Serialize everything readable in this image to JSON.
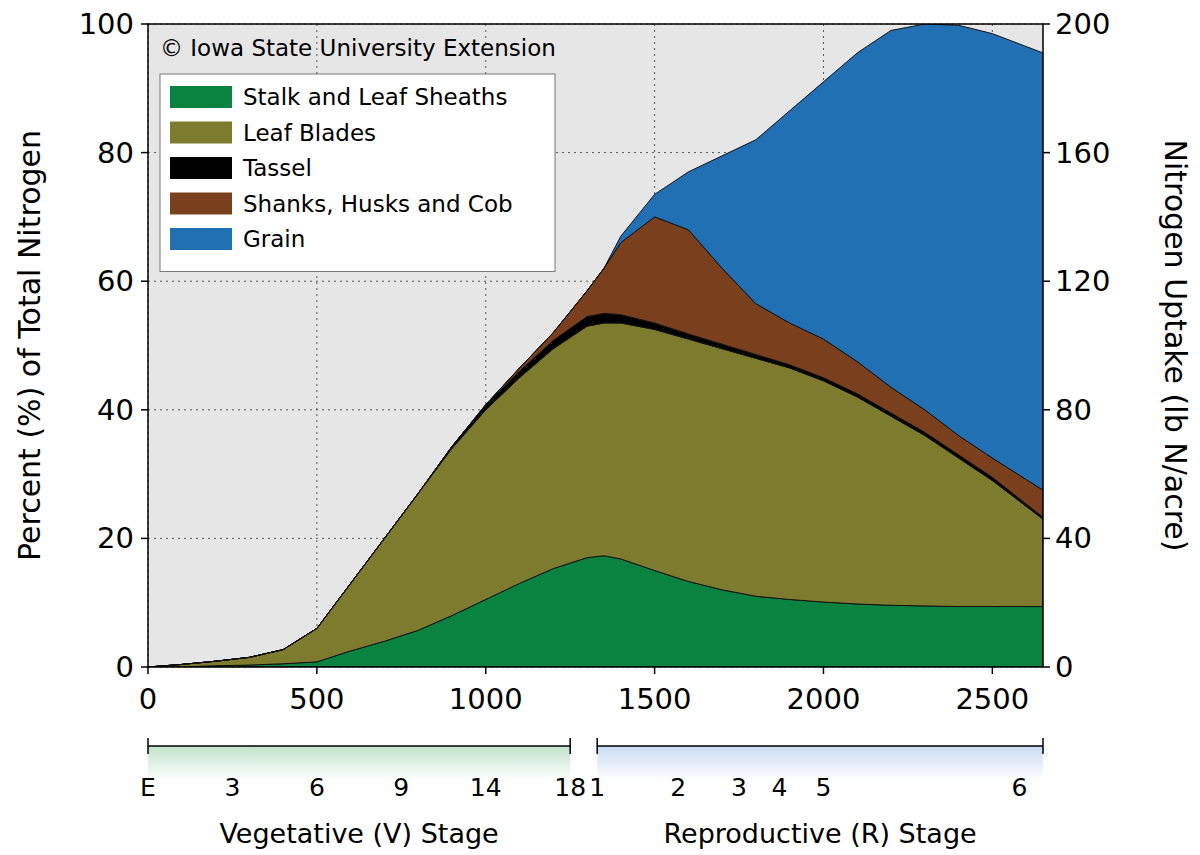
{
  "chart_data": {
    "type": "area",
    "stacked": true,
    "annotations": [
      "© Iowa State University Extension"
    ],
    "ylabel": "Percent (%) of Total Nitrogen",
    "y2label": "Nitrogen Uptake (lb N/acre)",
    "x": [
      0,
      100,
      200,
      300,
      400,
      500,
      600,
      700,
      800,
      900,
      1000,
      1100,
      1200,
      1300,
      1350,
      1400,
      1500,
      1600,
      1700,
      1800,
      1900,
      2000,
      2100,
      2200,
      2300,
      2400,
      2500,
      2650
    ],
    "xlim": [
      0,
      2650
    ],
    "xticks": [
      0,
      500,
      1000,
      1500,
      2000,
      2500
    ],
    "ylim": [
      0,
      100
    ],
    "yticks": [
      0,
      20,
      40,
      60,
      80,
      100
    ],
    "y2lim": [
      0,
      200
    ],
    "y2ticks": [
      0,
      40,
      80,
      120,
      160,
      200
    ],
    "grid": true,
    "legend": "top-left",
    "series": [
      {
        "name": "Stalk and Leaf Sheaths",
        "color": "#0a8341",
        "values": [
          0,
          0,
          0.2,
          0.3,
          0.5,
          0.8,
          2.5,
          4,
          5.7,
          8,
          10.5,
          13,
          15.3,
          17,
          17.3,
          16.8,
          15,
          13.3,
          12,
          11,
          10.5,
          10.1,
          9.8,
          9.6,
          9.5,
          9.4,
          9.4,
          9.4
        ]
      },
      {
        "name": "Leaf Blades",
        "color": "#7d7c2e",
        "values": [
          0,
          0.4,
          0.7,
          1.2,
          2.2,
          5.2,
          10.5,
          16,
          21.3,
          26,
          29.5,
          32,
          34.2,
          36,
          36.2,
          36.7,
          37.5,
          37.7,
          37.5,
          37,
          36,
          34.4,
          32.2,
          29.4,
          26.5,
          23.1,
          19.6,
          13.6
        ]
      },
      {
        "name": "Tassel",
        "color": "#000000",
        "values": [
          0,
          0,
          0,
          0,
          0,
          0,
          0,
          0,
          0,
          0.3,
          0.7,
          1,
          1.3,
          1.5,
          1.5,
          1.3,
          1,
          0.8,
          0.7,
          0.6,
          0.5,
          0.5,
          0.5,
          0.5,
          0.5,
          0.5,
          0.5,
          0.3
        ]
      },
      {
        "name": "Shanks, Husks and Cob",
        "color": "#7a401d",
        "values": [
          0,
          0,
          0,
          0,
          0,
          0,
          0,
          0,
          0,
          0,
          0.1,
          0.5,
          1.2,
          4,
          7,
          11.2,
          16.5,
          16.2,
          11.8,
          7.9,
          6.5,
          6,
          5,
          4,
          3.5,
          3,
          3,
          4.2
        ]
      },
      {
        "name": "Grain",
        "color": "#2270b4",
        "values": [
          0,
          0,
          0,
          0,
          0,
          0,
          0,
          0,
          0,
          0,
          0,
          0,
          0,
          0,
          0,
          1,
          3.5,
          9,
          17.5,
          25.5,
          33,
          40,
          48,
          55.5,
          60,
          63.8,
          66,
          68
        ]
      }
    ],
    "stages": [
      {
        "name": "Vegetative (V) Stage",
        "color": "#1e9a46",
        "range": [
          0,
          1250
        ],
        "ticks": [
          {
            "value": 0,
            "label": "E"
          },
          {
            "value": 250,
            "label": "3"
          },
          {
            "value": 500,
            "label": "6"
          },
          {
            "value": 750,
            "label": "9"
          },
          {
            "value": 1000,
            "label": "14"
          },
          {
            "value": 1250,
            "label": "18"
          }
        ]
      },
      {
        "name": "Reproductive (R) Stage",
        "color": "#3d7fd0",
        "range": [
          1330,
          2650
        ],
        "ticks": [
          {
            "value": 1330,
            "label": "1"
          },
          {
            "value": 1570,
            "label": "2"
          },
          {
            "value": 1750,
            "label": "3"
          },
          {
            "value": 1870,
            "label": "4"
          },
          {
            "value": 2000,
            "label": "5"
          },
          {
            "value": 2580,
            "label": "6"
          }
        ]
      }
    ]
  }
}
